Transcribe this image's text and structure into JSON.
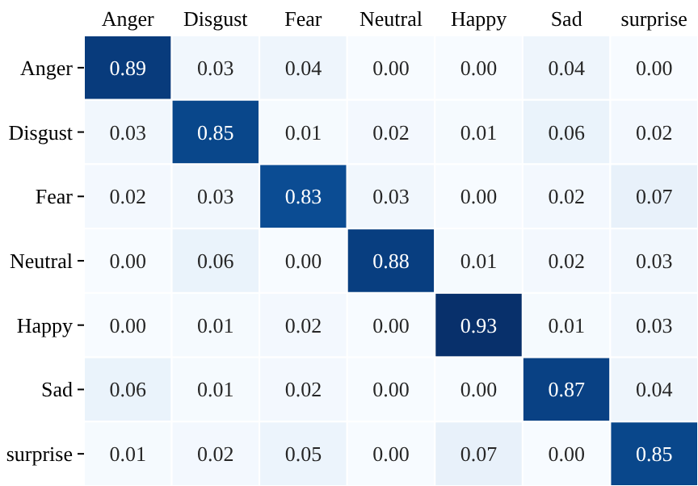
{
  "chart_data": {
    "type": "heatmap",
    "categories": [
      "Anger",
      "Disgust",
      "Fear",
      "Neutral",
      "Happy",
      "Sad",
      "surprise"
    ],
    "y_categories": [
      "Anger",
      "Disgust",
      "Fear",
      "Neutral",
      "Happy",
      "Sad",
      "surprise"
    ],
    "cells": [
      [
        0.89,
        0.03,
        0.04,
        0.0,
        0.0,
        0.04,
        0.0
      ],
      [
        0.03,
        0.85,
        0.01,
        0.02,
        0.01,
        0.06,
        0.02
      ],
      [
        0.02,
        0.03,
        0.83,
        0.03,
        0.0,
        0.02,
        0.07
      ],
      [
        0.0,
        0.06,
        0.0,
        0.88,
        0.01,
        0.02,
        0.03
      ],
      [
        0.0,
        0.01,
        0.02,
        0.0,
        0.93,
        0.01,
        0.03
      ],
      [
        0.06,
        0.01,
        0.02,
        0.0,
        0.0,
        0.87,
        0.04
      ],
      [
        0.01,
        0.02,
        0.05,
        0.0,
        0.07,
        0.0,
        0.85
      ]
    ],
    "cell_labels": [
      [
        "0.89",
        "0.03",
        "0.04",
        "0.00",
        "0.00",
        "0.04",
        "0.00"
      ],
      [
        "0.03",
        "0.85",
        "0.01",
        "0.02",
        "0.01",
        "0.06",
        "0.02"
      ],
      [
        "0.02",
        "0.03",
        "0.83",
        "0.03",
        "0.00",
        "0.02",
        "0.07"
      ],
      [
        "0.00",
        "0.06",
        "0.00",
        "0.88",
        "0.01",
        "0.02",
        "0.03"
      ],
      [
        "0.00",
        "0.01",
        "0.02",
        "0.00",
        "0.93",
        "0.01",
        "0.03"
      ],
      [
        "0.06",
        "0.01",
        "0.02",
        "0.00",
        "0.00",
        "0.87",
        "0.04"
      ],
      [
        "0.01",
        "0.02",
        "0.05",
        "0.00",
        "0.07",
        "0.00",
        "0.85"
      ]
    ]
  }
}
